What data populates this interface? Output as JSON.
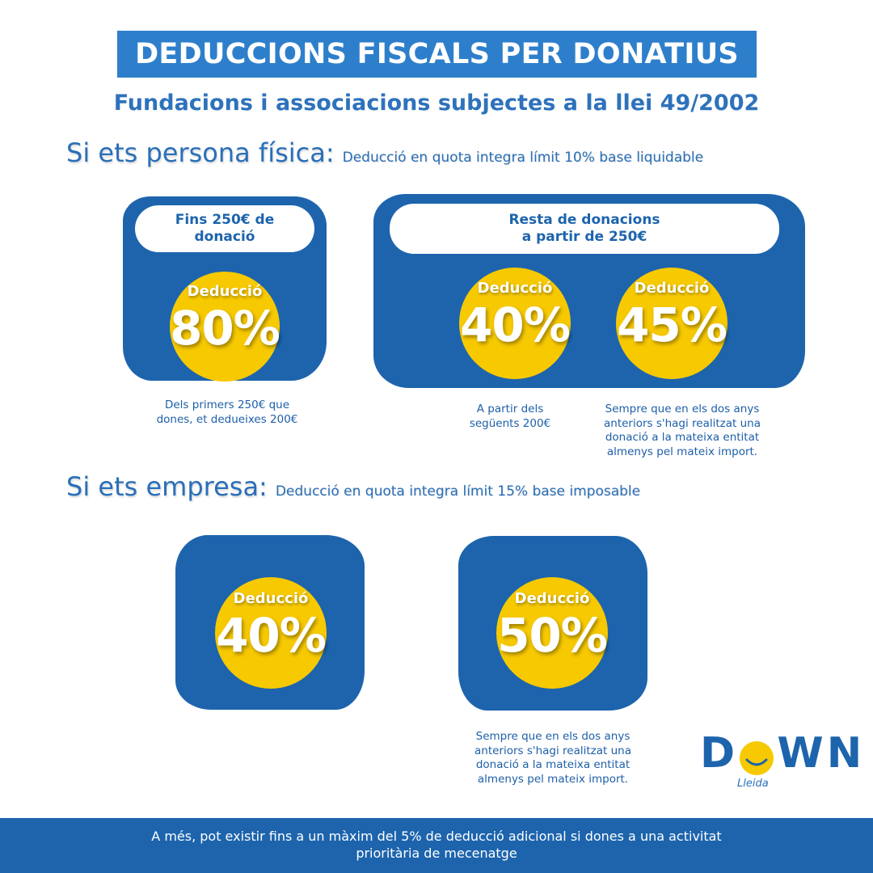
{
  "title": "DEDUCCIONS FISCALS PER DONATIUS",
  "subtitle": "Fundacions i associacions subjectes a la llei 49/2002",
  "persona": {
    "heading": "Si ets persona física:",
    "detail": "Deducció en quota integra límit 10% base liquidable",
    "box1": {
      "pill_line1": "Fins 250€ de",
      "pill_line2": "donació",
      "label": "Deducció",
      "percent": "80%",
      "note_line1": "Dels primers 250€ que",
      "note_line2": "dones, et dedueixes 200€"
    },
    "box2": {
      "pill_line1": "Resta de donacions",
      "pill_line2": "a partir de 250€",
      "a": {
        "label": "Deducció",
        "percent": "40%",
        "note_line1": "A partir dels",
        "note_line2": "següents 200€"
      },
      "b": {
        "label": "Deducció",
        "percent": "45%",
        "note_line1": "Sempre que en els dos anys",
        "note_line2": "anteriors s'hagi realitzat una",
        "note_line3": "donació a la mateixa entitat",
        "note_line4": "almenys pel mateix import."
      }
    }
  },
  "empresa": {
    "heading": "Si ets empresa:",
    "detail": "Deducció en quota integra límit 15% base imposable",
    "box1": {
      "label": "Deducció",
      "percent": "40%"
    },
    "box2": {
      "label": "Deducció",
      "percent": "50%",
      "note_line1": "Sempre que en els dos anys",
      "note_line2": "anteriors s'hagi realitzat una",
      "note_line3": "donació a la mateixa entitat",
      "note_line4": "almenys pel mateix import."
    }
  },
  "footer": "A més, pot existir fins a un màxim del 5% de deducció adicional si dones a una activitat prioritària de mecenatge",
  "logo": {
    "word": "DOWN",
    "sub": "Lleida"
  },
  "colors": {
    "primary_blue": "#1d64ad",
    "title_blue": "#2e7fcb",
    "yellow": "#f7c900"
  }
}
